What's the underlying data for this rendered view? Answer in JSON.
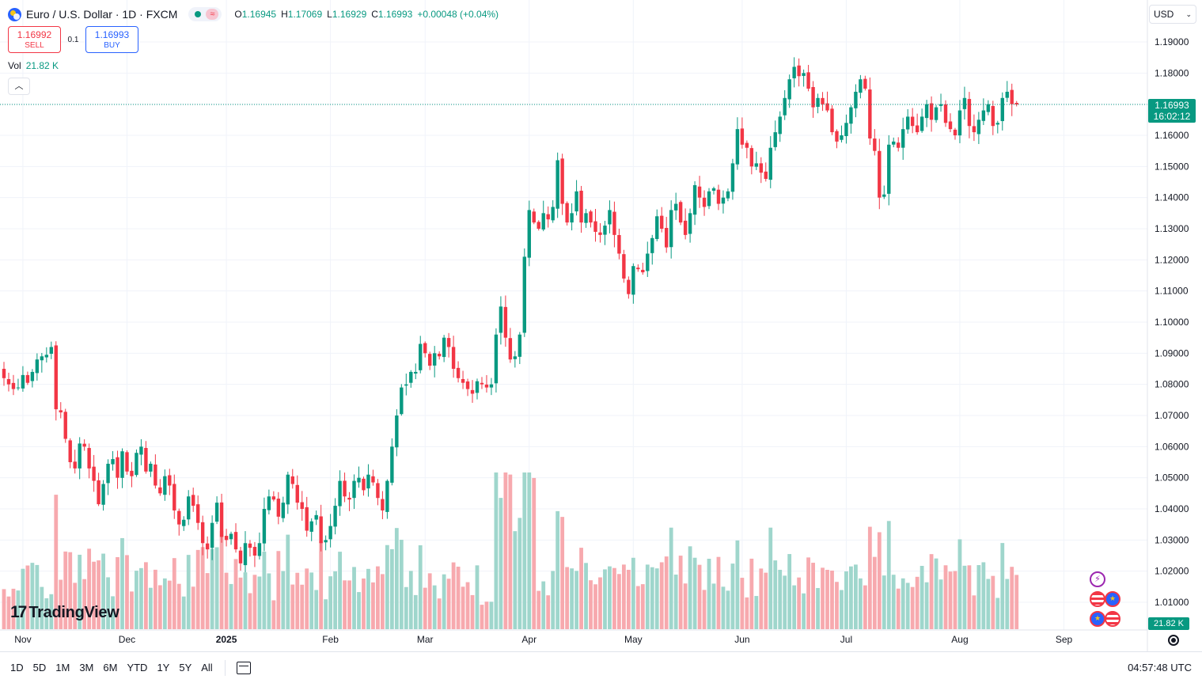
{
  "header": {
    "title": "Euro / U.S. Dollar · 1D · FXCM",
    "ohlc": [
      {
        "k": "O",
        "v": "1.16945"
      },
      {
        "k": "H",
        "v": "1.17069"
      },
      {
        "k": "L",
        "v": "1.16929"
      },
      {
        "k": "C",
        "v": "1.16993"
      },
      {
        "k": "",
        "v": "+0.00048 (+0.04%)"
      }
    ],
    "wave_symbol": "≈"
  },
  "trade": {
    "sell_price": "1.16992",
    "sell_label": "SELL",
    "spread": "0.1",
    "buy_price": "1.16993",
    "buy_label": "BUY"
  },
  "volume_legend": {
    "label": "Vol",
    "value": "21.82 K"
  },
  "currency": "USD",
  "last_price": {
    "price": "1.16993",
    "countdown": "16:02:12"
  },
  "volume_tag": "21.82 K",
  "logo_text": "TradingView",
  "toolbar": {
    "ranges": [
      "1D",
      "5D",
      "1M",
      "3M",
      "6M",
      "YTD",
      "1Y",
      "5Y",
      "All"
    ],
    "clock": "04:57:48 UTC"
  },
  "colors": {
    "up": "#089981",
    "down": "#f23645",
    "up_vol": "#9fd6cc",
    "down_vol": "#f7a9ae"
  },
  "chart_data": {
    "type": "candlestick",
    "y_ticks": [
      "1.19000",
      "1.18000",
      "1.17000",
      "1.16000",
      "1.15000",
      "1.14000",
      "1.13000",
      "1.12000",
      "1.11000",
      "1.10000",
      "1.09000",
      "1.08000",
      "1.07000",
      "1.06000",
      "1.05000",
      "1.04000",
      "1.03000",
      "1.02000",
      "1.01000"
    ],
    "ylim": [
      1.0,
      1.1915
    ],
    "x_labels": [
      {
        "label": "Nov",
        "bold": false
      },
      {
        "label": "Dec",
        "bold": false
      },
      {
        "label": "2025",
        "bold": true
      },
      {
        "label": "Feb",
        "bold": false
      },
      {
        "label": "Mar",
        "bold": false
      },
      {
        "label": "Apr",
        "bold": false
      },
      {
        "label": "May",
        "bold": false
      },
      {
        "label": "Jun",
        "bold": false
      },
      {
        "label": "Jul",
        "bold": false
      },
      {
        "label": "Aug",
        "bold": false
      },
      {
        "label": "Sep",
        "bold": false
      }
    ],
    "month_start_index": [
      4,
      26,
      47,
      69,
      89,
      111,
      133,
      156,
      178,
      202,
      224
    ],
    "closes": [
      1.082,
      1.08,
      1.0785,
      1.079,
      1.083,
      1.0805,
      1.084,
      1.088,
      1.089,
      1.0895,
      1.092,
      1.072,
      1.071,
      1.0625,
      1.055,
      1.053,
      1.061,
      1.06,
      1.053,
      1.049,
      1.0415,
      1.048,
      1.0545,
      1.056,
      1.05,
      1.0585,
      1.052,
      1.0505,
      1.058,
      1.06,
      1.052,
      1.0545,
      1.0475,
      1.045,
      1.0505,
      1.0475,
      1.0395,
      1.035,
      1.0365,
      1.044,
      1.041,
      1.0355,
      1.029,
      1.027,
      1.0355,
      1.042,
      1.031,
      1.03,
      1.032,
      1.027,
      1.0225,
      1.029,
      1.0275,
      1.025,
      1.029,
      1.04,
      1.044,
      1.043,
      1.0375,
      1.042,
      1.051,
      1.048,
      1.042,
      1.04,
      1.033,
      1.036,
      1.038,
      1.029,
      1.03,
      1.0345,
      1.041,
      1.049,
      1.044,
      1.043,
      1.049,
      1.05,
      1.046,
      1.051,
      1.0485,
      1.0435,
      1.0395,
      1.049,
      1.06,
      1.07,
      1.079,
      1.08,
      1.084,
      1.084,
      1.093,
      1.09,
      1.086,
      1.09,
      1.089,
      1.095,
      1.092,
      1.085,
      1.082,
      1.0805,
      1.0785,
      1.077,
      1.081,
      1.08,
      1.079,
      1.08,
      1.096,
      1.105,
      1.095,
      1.088,
      1.089,
      1.096,
      1.121,
      1.136,
      1.132,
      1.13,
      1.135,
      1.133,
      1.137,
      1.152,
      1.138,
      1.132,
      1.135,
      1.142,
      1.132,
      1.135,
      1.132,
      1.129,
      1.128,
      1.131,
      1.136,
      1.128,
      1.122,
      1.114,
      1.109,
      1.118,
      1.117,
      1.116,
      1.122,
      1.127,
      1.134,
      1.13,
      1.124,
      1.136,
      1.138,
      1.132,
      1.128,
      1.135,
      1.144,
      1.14,
      1.137,
      1.142,
      1.143,
      1.138,
      1.14,
      1.142,
      1.151,
      1.162,
      1.157,
      1.156,
      1.15,
      1.151,
      1.148,
      1.146,
      1.156,
      1.161,
      1.166,
      1.172,
      1.178,
      1.182,
      1.179,
      1.18,
      1.175,
      1.169,
      1.172,
      1.17,
      1.168,
      1.161,
      1.158,
      1.16,
      1.164,
      1.169,
      1.174,
      1.178,
      1.175,
      1.159,
      1.155,
      1.14,
      1.141,
      1.157,
      1.158,
      1.156,
      1.162,
      1.166,
      1.163,
      1.161,
      1.166,
      1.17,
      1.165,
      1.169,
      1.17,
      1.164,
      1.162,
      1.16,
      1.168,
      1.172,
      1.163,
      1.161,
      1.165,
      1.168,
      1.17,
      1.163,
      1.164,
      1.172,
      1.174,
      1.17,
      1.1699
    ],
    "volume_note": "relative volume bars, color follows candle direction"
  }
}
